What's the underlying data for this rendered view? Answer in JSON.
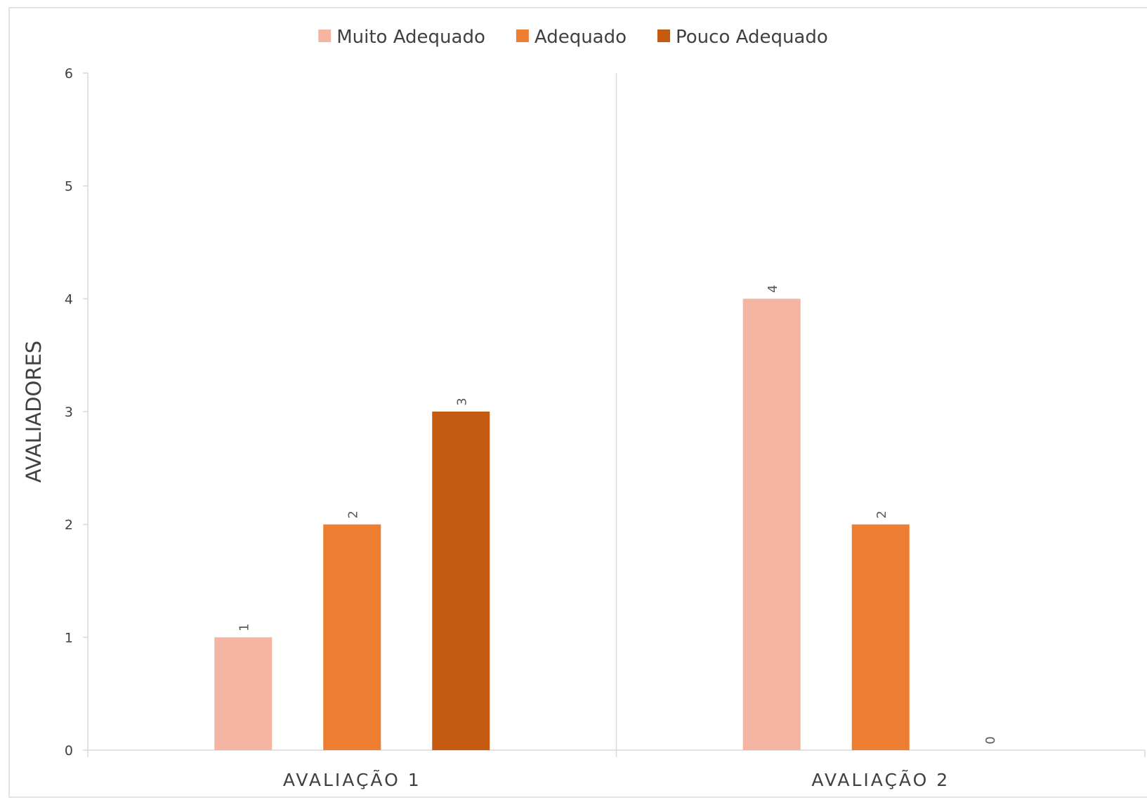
{
  "chart_data": {
    "type": "bar",
    "categories": [
      "AVALIAÇÃO  1",
      "AVALIAÇÃO  2"
    ],
    "series": [
      {
        "name": "Muito Adequado",
        "values": [
          1,
          4
        ],
        "color": "#F4B6A2"
      },
      {
        "name": "Adequado",
        "values": [
          2,
          2
        ],
        "color": "#ED7D31"
      },
      {
        "name": "Pouco Adequado",
        "values": [
          3,
          0
        ],
        "color": "#C55A11"
      }
    ],
    "title": "",
    "xlabel": "",
    "ylabel": "AVALIADORES",
    "ylim": [
      0,
      6
    ],
    "yticks": [
      0,
      1,
      2,
      3,
      4,
      5,
      6
    ],
    "grid": false,
    "legend": "top-center",
    "data_labels": true
  }
}
